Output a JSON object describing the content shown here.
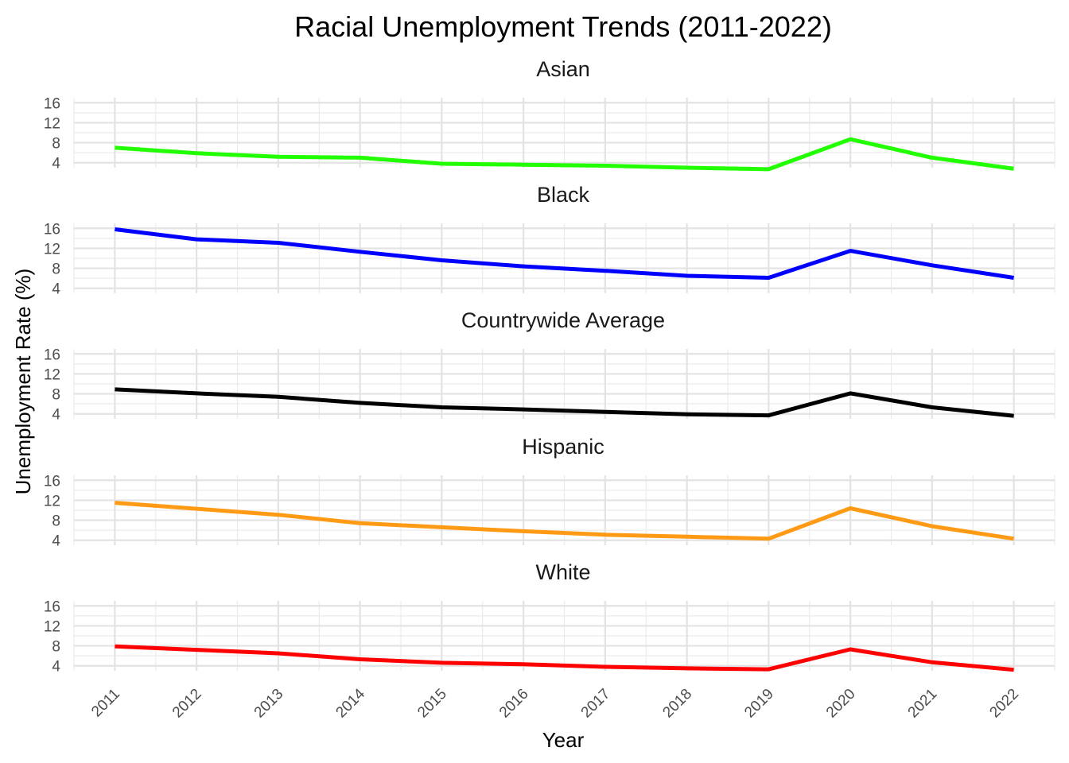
{
  "chart_data": {
    "type": "line",
    "title": "Racial Unemployment Trends (2011-2022)",
    "xlabel": "Year",
    "ylabel": "Unemployment Rate (%)",
    "x": [
      2011,
      2012,
      2013,
      2014,
      2015,
      2016,
      2017,
      2018,
      2019,
      2020,
      2021,
      2022
    ],
    "x_tick_labels": [
      "2011",
      "2012",
      "2013",
      "2014",
      "2015",
      "2016",
      "2017",
      "2018",
      "2019",
      "2020",
      "2021",
      "2022"
    ],
    "xlim": [
      2010.5,
      2022.5
    ],
    "ylim": [
      3,
      17
    ],
    "y_ticks": [
      4,
      8,
      12,
      16
    ],
    "y_tick_labels": [
      "4",
      "8",
      "12",
      "16"
    ],
    "grid": true,
    "facets": "vertical, shared x and y axes",
    "series": [
      {
        "name": "Asian",
        "color": "#22ff00",
        "values": [
          7.0,
          5.9,
          5.2,
          5.0,
          3.8,
          3.6,
          3.4,
          3.0,
          2.7,
          8.7,
          5.0,
          2.8
        ]
      },
      {
        "name": "Black",
        "color": "#0000ff",
        "values": [
          15.8,
          13.8,
          13.1,
          11.3,
          9.6,
          8.4,
          7.5,
          6.5,
          6.1,
          11.5,
          8.6,
          6.1
        ]
      },
      {
        "name": "Countrywide Average",
        "color": "#000000",
        "values": [
          8.9,
          8.1,
          7.4,
          6.2,
          5.3,
          4.9,
          4.4,
          3.9,
          3.7,
          8.1,
          5.3,
          3.6
        ]
      },
      {
        "name": "Hispanic",
        "color": "#ff9a14",
        "values": [
          11.5,
          10.3,
          9.1,
          7.4,
          6.6,
          5.8,
          5.1,
          4.7,
          4.3,
          10.4,
          6.8,
          4.3
        ]
      },
      {
        "name": "White",
        "color": "#ff0000",
        "values": [
          7.9,
          7.2,
          6.5,
          5.3,
          4.6,
          4.3,
          3.8,
          3.5,
          3.3,
          7.3,
          4.7,
          3.2
        ]
      }
    ]
  }
}
